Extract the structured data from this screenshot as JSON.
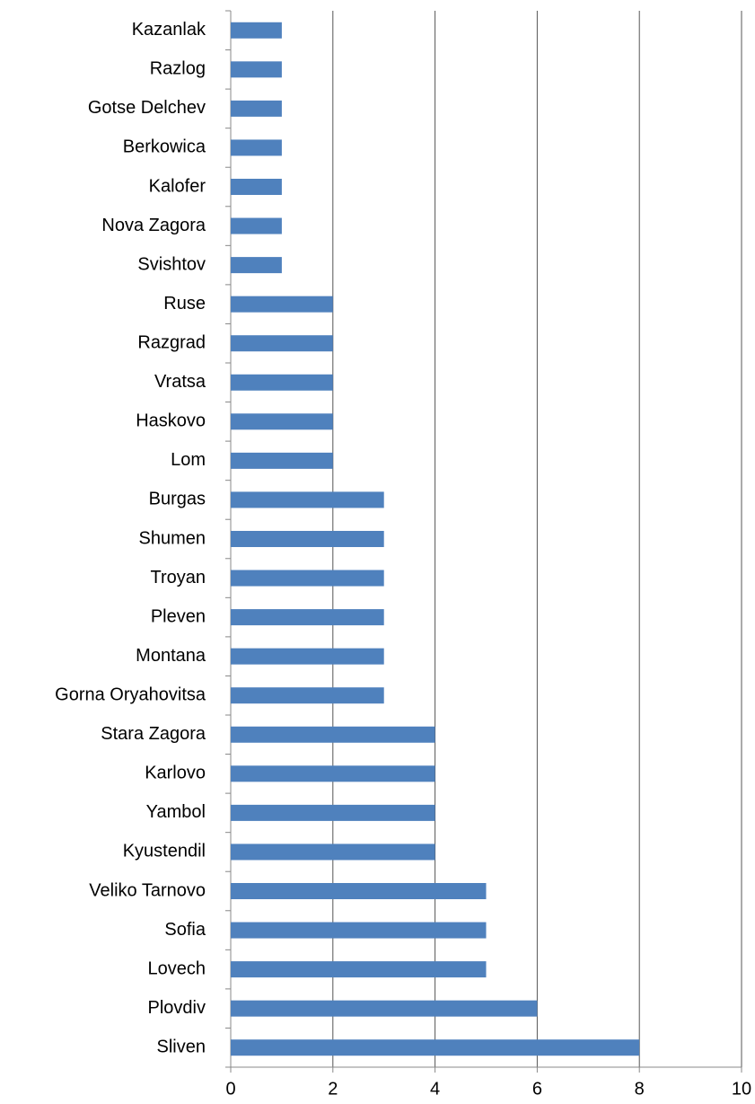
{
  "chart_data": {
    "type": "barh",
    "categories": [
      "Kazanlak",
      "Razlog",
      "Gotse Delchev",
      "Berkowica",
      "Kalofer",
      "Nova Zagora",
      "Svishtov",
      "Ruse",
      "Razgrad",
      "Vratsa",
      "Haskovo",
      "Lom",
      "Burgas",
      "Shumen",
      "Troyan",
      "Pleven",
      "Montana",
      "Gorna Oryahovitsa",
      "Stara Zagora",
      "Karlovo",
      "Yambol",
      "Kyustendil",
      "Veliko Tarnovo",
      "Sofia",
      "Lovech",
      "Plovdiv",
      "Sliven"
    ],
    "values": [
      1,
      1,
      1,
      1,
      1,
      1,
      1,
      2,
      2,
      2,
      2,
      2,
      3,
      3,
      3,
      3,
      3,
      3,
      4,
      4,
      4,
      4,
      5,
      5,
      5,
      6,
      8
    ],
    "color": "#4f81bd",
    "xlim": [
      0,
      10
    ],
    "xticks": [
      0,
      2,
      4,
      6,
      8,
      10
    ],
    "grid": true
  }
}
